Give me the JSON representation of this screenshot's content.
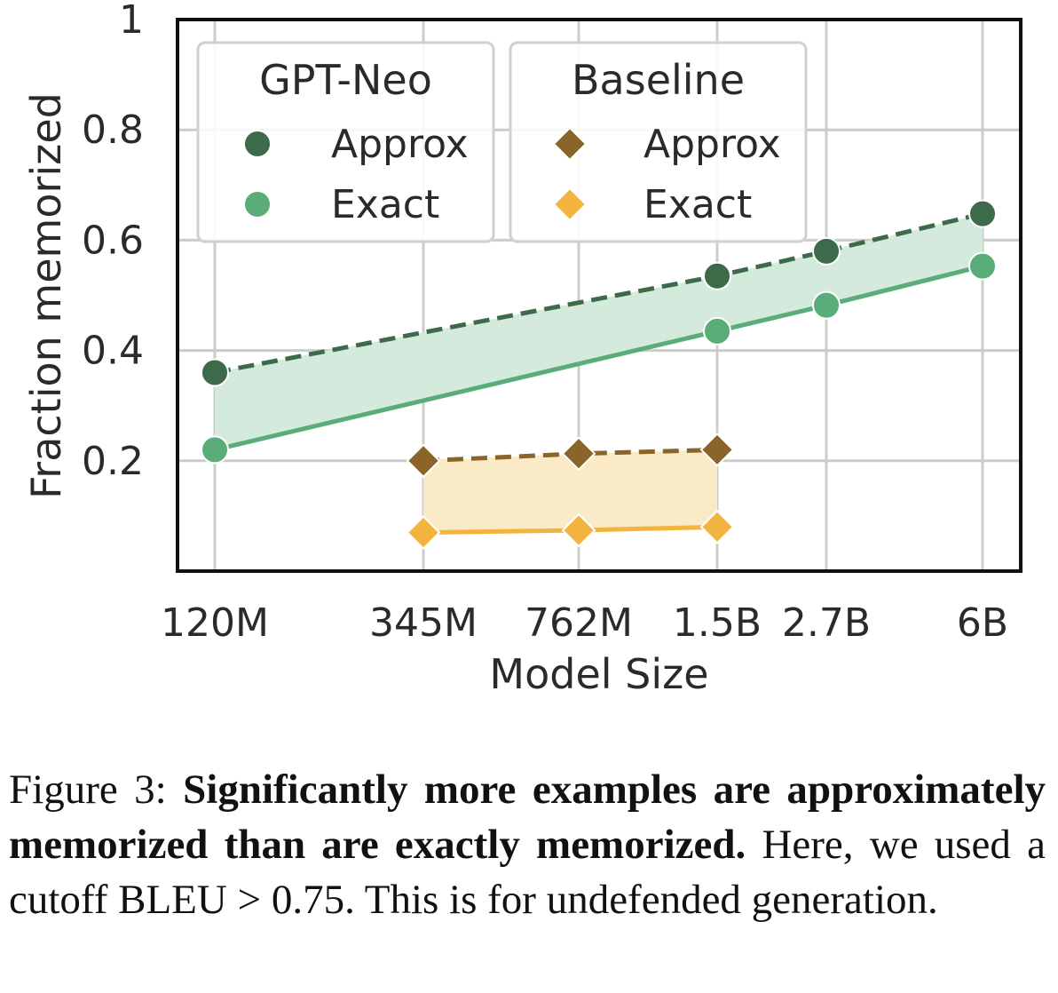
{
  "chart_data": {
    "type": "line",
    "xlabel": "Model Size",
    "ylabel": "Fraction memorized",
    "x_ticks": [
      "120M",
      "345M",
      "762M",
      "1.5B",
      "2.7B",
      "6B"
    ],
    "y_ticks": [
      "0.2",
      "0.4",
      "0.6",
      "0.8",
      "1"
    ],
    "ylim": [
      0,
      1
    ],
    "grid": true,
    "legend_placement": "top-left",
    "groups": [
      {
        "title": "GPT-Neo",
        "marker": "circle",
        "x": [
          "120M",
          "1.5B",
          "2.7B",
          "6B"
        ],
        "series": [
          {
            "name": "Approx",
            "style": "dashed",
            "color": "#3d6b4a",
            "values": [
              0.36,
              0.535,
              0.58,
              0.648
            ]
          },
          {
            "name": "Exact",
            "style": "solid",
            "color": "#5aad78",
            "values": [
              0.22,
              0.435,
              0.482,
              0.553
            ]
          }
        ],
        "fill_color": "#d3eadc"
      },
      {
        "title": "Baseline",
        "marker": "diamond",
        "x": [
          "345M",
          "762M",
          "1.5B"
        ],
        "series": [
          {
            "name": "Approx",
            "style": "dashed",
            "color": "#8a6428",
            "values": [
              0.2,
              0.213,
              0.22
            ]
          },
          {
            "name": "Exact",
            "style": "solid",
            "color": "#f2b43e",
            "values": [
              0.07,
              0.074,
              0.08
            ]
          }
        ],
        "fill_color": "#fbeac6"
      }
    ]
  },
  "caption": {
    "prefix": "Figure 3: ",
    "bold": "Significantly more examples are approximately memorized than are exactly memorized.",
    "rest": " Here, we used a cutoff BLEU > 0.75. This is for undefended generation."
  }
}
